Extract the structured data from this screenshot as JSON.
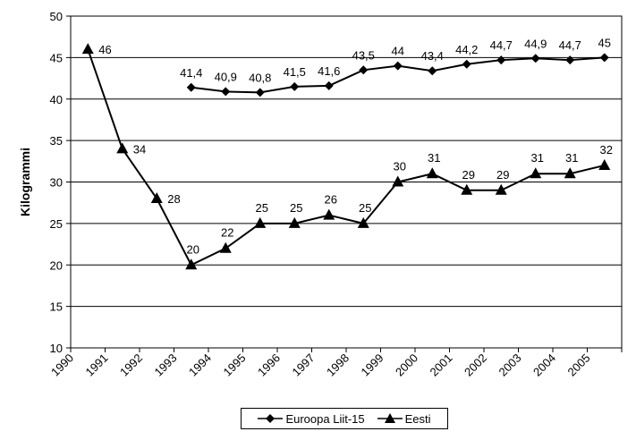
{
  "chart_data": {
    "type": "line",
    "title": "",
    "xlabel": "",
    "ylabel": "Kilogrammi",
    "ylim": [
      10,
      50
    ],
    "yticks": [
      "10",
      "15",
      "20",
      "25",
      "30",
      "35",
      "40",
      "45",
      "50"
    ],
    "categories": [
      "1990",
      "1991",
      "1992",
      "1993",
      "1994",
      "1995",
      "1996",
      "1997",
      "1998",
      "1999",
      "2000",
      "2001",
      "2002",
      "2003",
      "2004",
      "2005"
    ],
    "grid": "horizontal",
    "legend_position": "bottom",
    "series": [
      {
        "name": "Euroopa Liit-15",
        "marker": "diamond",
        "color": "#000000",
        "values": [
          null,
          null,
          null,
          41.4,
          40.9,
          40.8,
          41.5,
          41.6,
          43.5,
          44,
          43.4,
          44.2,
          44.7,
          44.9,
          44.7,
          45
        ],
        "labels": [
          "",
          "",
          "",
          "41,4",
          "40,9",
          "40,8",
          "41,5",
          "41,6",
          "43,5",
          "44",
          "43,4",
          "44,2",
          "44,7",
          "44,9",
          "44,7",
          "45"
        ]
      },
      {
        "name": "Eesti",
        "marker": "triangle",
        "color": "#000000",
        "values": [
          46,
          34,
          28,
          20,
          22,
          25,
          25,
          26,
          25,
          30,
          31,
          29,
          29,
          31,
          31,
          32
        ],
        "labels": [
          "46",
          "34",
          "28",
          "20",
          "22",
          "25",
          "25",
          "26",
          "25",
          "30",
          "31",
          "29",
          "29",
          "31",
          "31",
          "32"
        ]
      }
    ]
  }
}
